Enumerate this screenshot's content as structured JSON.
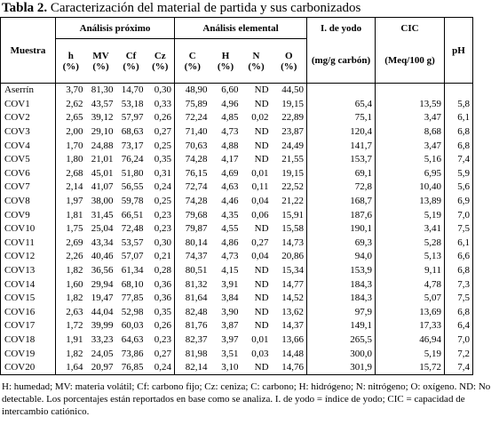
{
  "title": {
    "label": "Tabla 2.",
    "text": "Caracterización del material de partida y sus carbonizados"
  },
  "table": {
    "header": {
      "sample": "Muestra",
      "group1": "Análisis próximo",
      "group2": "Análisis elemental",
      "iodine": "I. de yodo",
      "cic": "CIC",
      "ph": "pH"
    },
    "subheader": [
      {
        "name": "h",
        "unit": "(%)"
      },
      {
        "name": "MV",
        "unit": "(%)"
      },
      {
        "name": "Cf",
        "unit": "(%)"
      },
      {
        "name": "Cz",
        "unit": "(%)"
      },
      {
        "name": "C",
        "unit": "(%)"
      },
      {
        "name": "H",
        "unit": "(%)"
      },
      {
        "name": "N",
        "unit": "(%)"
      },
      {
        "name": "O",
        "unit": "(%)"
      },
      {
        "unit": "(mg/g carbón)"
      },
      {
        "unit": "(Meq/100 g)"
      }
    ],
    "rows": [
      [
        "Aserrín",
        "3,70",
        "81,30",
        "14,70",
        "0,30",
        "48,90",
        "6,60",
        "ND",
        "44,50"
      ],
      [
        "COV1",
        "2,62",
        "43,57",
        "53,18",
        "0,33",
        "75,89",
        "4,96",
        "ND",
        "19,15",
        "65,4",
        "13,59",
        "5,8"
      ],
      [
        "COV2",
        "2,65",
        "39,12",
        "57,97",
        "0,26",
        "72,24",
        "4,85",
        "0,02",
        "22,89",
        "75,1",
        "3,47",
        "6,1"
      ],
      [
        "COV3",
        "2,00",
        "29,10",
        "68,63",
        "0,27",
        "71,40",
        "4,73",
        "ND",
        "23,87",
        "120,4",
        "8,68",
        "6,8"
      ],
      [
        "COV4",
        "1,70",
        "24,88",
        "73,17",
        "0,25",
        "70,63",
        "4,88",
        "ND",
        "24,49",
        "141,7",
        "3,47",
        "6,8"
      ],
      [
        "COV5",
        "1,80",
        "21,01",
        "76,24",
        "0,35",
        "74,28",
        "4,17",
        "ND",
        "21,55",
        "153,7",
        "5,16",
        "7,4"
      ],
      [
        "COV6",
        "2,68",
        "45,01",
        "51,80",
        "0,31",
        "76,15",
        "4,69",
        "0,01",
        "19,15",
        "69,1",
        "6,95",
        "5,9"
      ],
      [
        "COV7",
        "2,14",
        "41,07",
        "56,55",
        "0,24",
        "72,74",
        "4,63",
        "0,11",
        "22,52",
        "72,8",
        "10,40",
        "5,6"
      ],
      [
        "COV8",
        "1,97",
        "38,00",
        "59,78",
        "0,25",
        "74,28",
        "4,46",
        "0,04",
        "21,22",
        "168,7",
        "13,89",
        "6,9"
      ],
      [
        "COV9",
        "1,81",
        "31,45",
        "66,51",
        "0,23",
        "79,68",
        "4,35",
        "0,06",
        "15,91",
        "187,6",
        "5,19",
        "7,0"
      ],
      [
        "COV10",
        "1,75",
        "25,04",
        "72,48",
        "0,23",
        "79,87",
        "4,55",
        "ND",
        "15,58",
        "190,1",
        "3,41",
        "7,5"
      ],
      [
        "COV11",
        "2,69",
        "43,34",
        "53,57",
        "0,30",
        "80,14",
        "4,86",
        "0,27",
        "14,73",
        "69,3",
        "5,28",
        "6,1"
      ],
      [
        "COV12",
        "2,26",
        "40,46",
        "57,07",
        "0,21",
        "74,37",
        "4,73",
        "0,04",
        "20,86",
        "94,0",
        "5,13",
        "6,6"
      ],
      [
        "COV13",
        "1,82",
        "36,56",
        "61,34",
        "0,28",
        "80,51",
        "4,15",
        "ND",
        "15,34",
        "153,9",
        "9,11",
        "6,8"
      ],
      [
        "COV14",
        "1,60",
        "29,94",
        "68,10",
        "0,36",
        "81,32",
        "3,91",
        "ND",
        "14,77",
        "184,3",
        "4,78",
        "7,3"
      ],
      [
        "COV15",
        "1,82",
        "19,47",
        "77,85",
        "0,36",
        "81,64",
        "3,84",
        "ND",
        "14,52",
        "184,3",
        "5,07",
        "7,5"
      ],
      [
        "COV16",
        "2,63",
        "44,04",
        "52,98",
        "0,35",
        "82,48",
        "3,90",
        "ND",
        "13,62",
        "97,9",
        "13,69",
        "6,8"
      ],
      [
        "COV17",
        "1,72",
        "39,99",
        "60,03",
        "0,26",
        "81,76",
        "3,87",
        "ND",
        "14,37",
        "149,1",
        "17,33",
        "6,4"
      ],
      [
        "COV18",
        "1,91",
        "33,23",
        "64,63",
        "0,23",
        "82,37",
        "3,97",
        "0,01",
        "13,66",
        "265,5",
        "46,94",
        "7,0"
      ],
      [
        "COV19",
        "1,82",
        "24,05",
        "73,86",
        "0,27",
        "81,98",
        "3,51",
        "0,03",
        "14,48",
        "300,0",
        "5,19",
        "7,2"
      ],
      [
        "COV20",
        "1,64",
        "20,97",
        "76,85",
        "0,24",
        "82,14",
        "3,10",
        "ND",
        "14,76",
        "301,9",
        "15,72",
        "7,4"
      ]
    ]
  },
  "footnote": "H: humedad; MV: materia volátil; Cf: carbono fijo; Cz: ceniza; C: carbono; H: hidrógeno; N: nitrógeno; O: oxígeno. ND: No detectable. Los porcentajes están reportados en base como se analiza. I. de yodo = índice de yodo; CIC = capacidad de intercambio catiónico."
}
